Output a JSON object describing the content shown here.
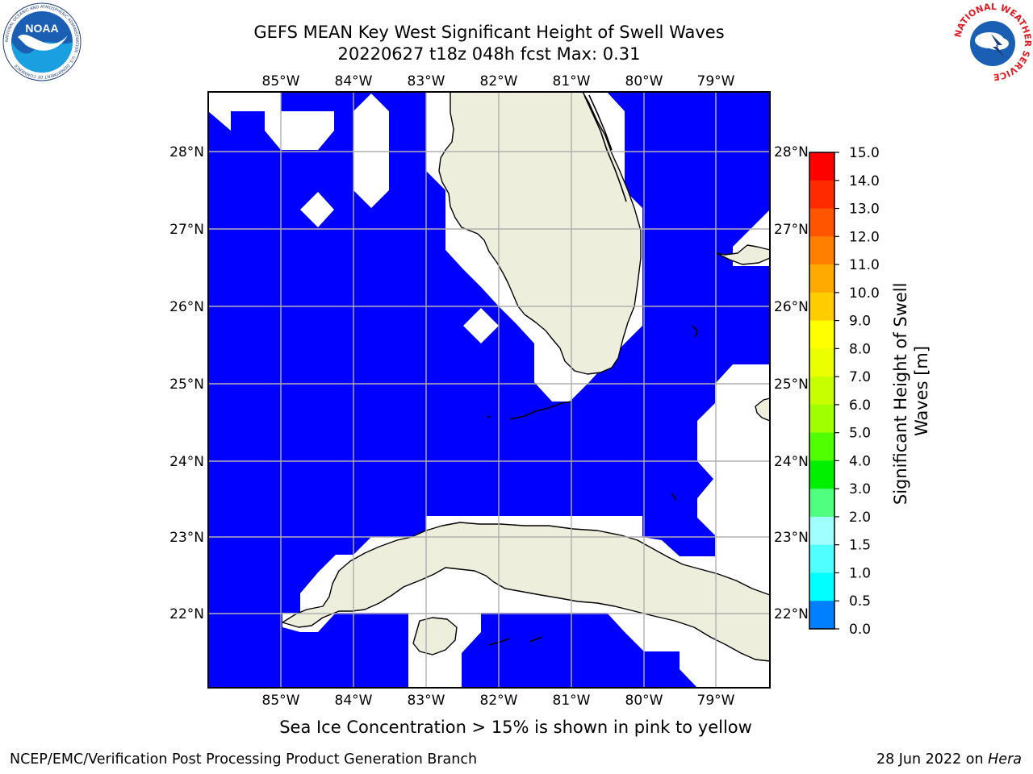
{
  "header": {
    "title_line1": "GEFS MEAN Key West Significant Height of Swell Waves",
    "title_line2": "20220627 t18z 048h fcst   Max: 0.31"
  },
  "logos": {
    "left": {
      "name": "noaa-logo",
      "text": "NOAA",
      "ring_text": "NATIONAL OCEANIC AND ATMOSPHERIC ADMINISTRATION · U.S. DEPARTMENT OF COMMERCE"
    },
    "right": {
      "name": "nws-logo",
      "ring_text": "NATIONAL WEATHER SERVICE"
    }
  },
  "map": {
    "ocean_color": "#0000ff",
    "land_color": "#eeeedd",
    "nodata_color": "#ffffff",
    "grid_color": "#b0b0b0",
    "lon_labels": [
      "85°W",
      "84°W",
      "83°W",
      "82°W",
      "81°W",
      "80°W",
      "79°W"
    ],
    "lat_labels": [
      "28°N",
      "27°N",
      "26°N",
      "25°N",
      "24°N",
      "23°N",
      "22°N"
    ]
  },
  "colorbar": {
    "label": "Significant Height of Swell Waves [m]",
    "ticks": [
      "15.0",
      "14.0",
      "13.0",
      "12.0",
      "11.0",
      "10.0",
      "9.0",
      "8.0",
      "7.0",
      "6.0",
      "5.0",
      "4.0",
      "3.0",
      "2.0",
      "1.5",
      "1.0",
      "0.5",
      "0.0"
    ],
    "colors": [
      "#ff0000",
      "#ff2a00",
      "#ff5500",
      "#ff8000",
      "#ffaa00",
      "#ffcc00",
      "#ffff00",
      "#eaff00",
      "#c8ff00",
      "#a0ff00",
      "#50ff00",
      "#00f000",
      "#50ff80",
      "#a0ffff",
      "#50ffff",
      "#00ffff",
      "#0080ff",
      "#0000ff"
    ]
  },
  "caption": "Sea Ice Concentration > 15% is shown in pink to yellow",
  "footer": {
    "left": "NCEP/EMC/Verification Post Processing Product Generation Branch",
    "right_date": "28 Jun 2022 on ",
    "right_host": "Hera"
  }
}
